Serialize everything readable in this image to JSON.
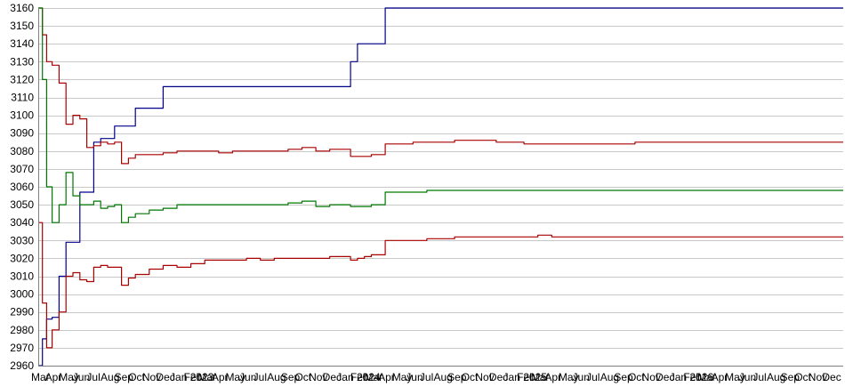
{
  "chart_data": {
    "type": "line",
    "title": "",
    "xlabel": "",
    "ylabel": "",
    "ylim": [
      2960,
      3160
    ],
    "y_ticks": [
      2960,
      2970,
      2980,
      2990,
      3000,
      3010,
      3020,
      3030,
      3040,
      3050,
      3060,
      3070,
      3080,
      3090,
      3100,
      3110,
      3120,
      3130,
      3140,
      3150,
      3160
    ],
    "grid": true,
    "legend": "none",
    "x_tick_labels": [
      "Mar",
      "Apr",
      "May",
      "Jun",
      "Jul",
      "Aug",
      "Sep",
      "Oct",
      "Nov",
      "Dec",
      "Jan 2023",
      "Feb",
      "Mar",
      "Apr",
      "May",
      "Jun",
      "Jul",
      "Aug",
      "Sep",
      "Oct",
      "Nov",
      "Dec",
      "Jan 2024",
      "Feb",
      "Mar",
      "Apr",
      "May",
      "Jun",
      "Jul",
      "Aug",
      "Sep",
      "Oct",
      "Nov",
      "Dec",
      "Jan 2025",
      "Feb",
      "Mar",
      "Apr",
      "May",
      "Jun",
      "Jul",
      "Aug",
      "Sep",
      "Oct",
      "Nov",
      "Dec",
      "Jan 2026",
      "Feb",
      "Mar",
      "Apr",
      "May",
      "Jun",
      "Jul",
      "Aug",
      "Sep",
      "Oct",
      "Nov",
      "Dec"
    ],
    "x": [
      0,
      0.3,
      0.6,
      1,
      1.5,
      2,
      2.5,
      3,
      3.5,
      4,
      4.5,
      5,
      5.5,
      6,
      6.5,
      7,
      8,
      9,
      10,
      11,
      12,
      13,
      14,
      15,
      16,
      17,
      18,
      19,
      20,
      21,
      22,
      22.5,
      23,
      23.5,
      24,
      25,
      26,
      27,
      28,
      29,
      30,
      31,
      32,
      33,
      34,
      35,
      36,
      37,
      38,
      39,
      40,
      41,
      42,
      43,
      44,
      45,
      46,
      47,
      48,
      49,
      50,
      51,
      52,
      53,
      54,
      55,
      56,
      57
    ],
    "series": [
      {
        "color": "#00008b",
        "values": [
          2960,
          2975,
          2986,
          2987,
          3010,
          3029,
          3029,
          3057,
          3057,
          3085,
          3087,
          3087,
          3094,
          3094,
          3094,
          3104,
          3104,
          3116,
          3116,
          3116,
          3116,
          3116,
          3116,
          3116,
          3116,
          3116,
          3116,
          3116,
          3116,
          3116,
          3116,
          3130,
          3140,
          3140,
          3140,
          3160,
          3160,
          3160,
          3160,
          3160,
          3160,
          3160,
          3160,
          3160,
          3160,
          3160,
          3160,
          3160,
          3160,
          3160,
          3160,
          3160,
          3160,
          3160,
          3160,
          3160,
          3160,
          3160,
          3160,
          3160,
          3160,
          3160,
          3160,
          3160,
          3160,
          3160,
          3160,
          3160
        ]
      },
      {
        "color": "#aa0000",
        "values": [
          3160,
          3145,
          3130,
          3128,
          3118,
          3095,
          3100,
          3098,
          3082,
          3083,
          3085,
          3084,
          3085,
          3073,
          3076,
          3078,
          3078,
          3079,
          3080,
          3080,
          3080,
          3079,
          3080,
          3080,
          3080,
          3080,
          3081,
          3082,
          3080,
          3081,
          3081,
          3077,
          3077,
          3077,
          3078,
          3084,
          3084,
          3085,
          3085,
          3085,
          3086,
          3086,
          3086,
          3085,
          3085,
          3084,
          3084,
          3084,
          3084,
          3084,
          3084,
          3084,
          3084,
          3085,
          3085,
          3085,
          3085,
          3085,
          3085,
          3085,
          3085,
          3085,
          3085,
          3085,
          3085,
          3085,
          3085,
          3085
        ]
      },
      {
        "color": "#007700",
        "values": [
          3160,
          3120,
          3060,
          3040,
          3050,
          3068,
          3055,
          3050,
          3050,
          3052,
          3048,
          3049,
          3050,
          3040,
          3043,
          3045,
          3047,
          3048,
          3050,
          3050,
          3050,
          3050,
          3050,
          3050,
          3050,
          3050,
          3051,
          3052,
          3049,
          3050,
          3050,
          3049,
          3049,
          3049,
          3050,
          3057,
          3057,
          3057,
          3058,
          3058,
          3058,
          3058,
          3058,
          3058,
          3058,
          3058,
          3058,
          3058,
          3058,
          3058,
          3058,
          3058,
          3058,
          3058,
          3058,
          3058,
          3058,
          3058,
          3058,
          3058,
          3058,
          3058,
          3058,
          3058,
          3058,
          3058,
          3058,
          3058
        ]
      },
      {
        "color": "#aa0000",
        "values": [
          3040,
          2995,
          2970,
          2980,
          2990,
          3010,
          3012,
          3008,
          3007,
          3015,
          3016,
          3015,
          3015,
          3005,
          3009,
          3011,
          3014,
          3016,
          3015,
          3017,
          3019,
          3019,
          3019,
          3020,
          3019,
          3020,
          3020,
          3020,
          3020,
          3021,
          3021,
          3019,
          3020,
          3021,
          3022,
          3030,
          3030,
          3030,
          3031,
          3031,
          3032,
          3032,
          3032,
          3032,
          3032,
          3032,
          3033,
          3032,
          3032,
          3032,
          3032,
          3032,
          3032,
          3032,
          3032,
          3032,
          3032,
          3032,
          3032,
          3032,
          3032,
          3032,
          3032,
          3032,
          3032,
          3032,
          3032,
          3032
        ]
      }
    ]
  }
}
